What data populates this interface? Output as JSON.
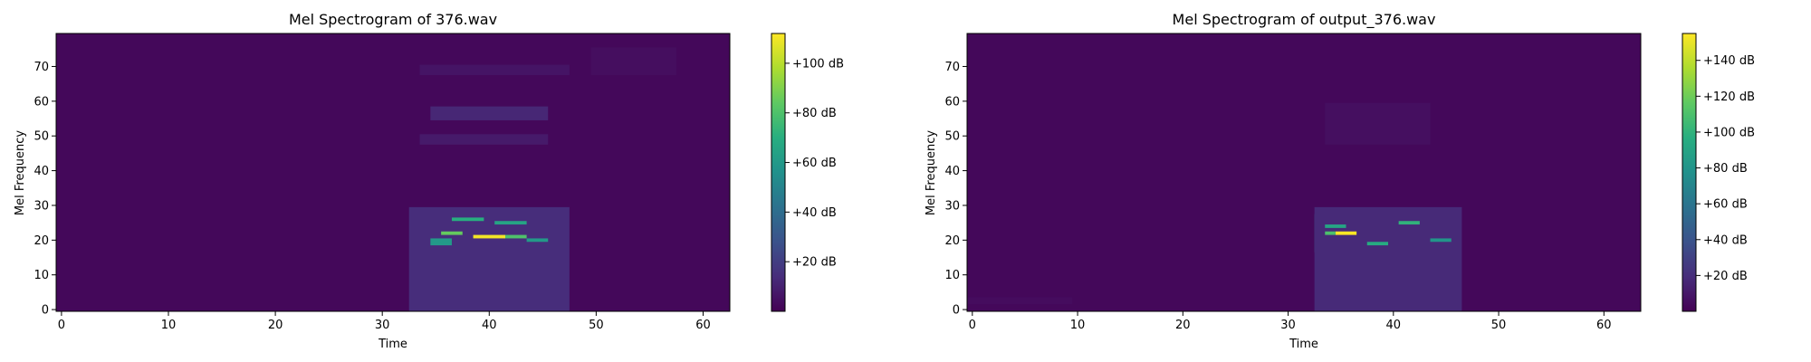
{
  "chart_data": [
    {
      "type": "heatmap",
      "title": "Mel Spectrogram of 376.wav",
      "xlabel": "Time",
      "ylabel": "Mel Frequency",
      "xlim": [
        -0.5,
        62.5
      ],
      "ylim": [
        -0.5,
        79.5
      ],
      "xticks": [
        0,
        10,
        20,
        30,
        40,
        50,
        60
      ],
      "yticks": [
        0,
        10,
        20,
        30,
        40,
        50,
        60,
        70
      ],
      "colormap": "viridis",
      "colorbar": {
        "max_db": 112,
        "ticks": [
          20,
          40,
          60,
          80,
          100
        ],
        "tick_format": "+{v} dB"
      },
      "hotspots": [
        {
          "t0": 34,
          "t1": 46,
          "m0": 18,
          "m1": 28,
          "db": 45
        },
        {
          "t0": 33,
          "t1": 48,
          "m0": 0,
          "m1": 30,
          "db": 14
        },
        {
          "t0": 35,
          "t1": 46,
          "m0": 55,
          "m1": 59,
          "db": 12
        },
        {
          "t0": 34,
          "t1": 46,
          "m0": 48,
          "m1": 51,
          "db": 8
        },
        {
          "t0": 34,
          "t1": 48,
          "m0": 68,
          "m1": 71,
          "db": 6
        },
        {
          "t0": 50,
          "t1": 58,
          "m0": 68,
          "m1": 76,
          "db": 4
        },
        {
          "t0": 39,
          "t1": 42,
          "m0": 21,
          "m1": 22,
          "db": 110
        },
        {
          "t0": 42,
          "t1": 44,
          "m0": 21,
          "m1": 22,
          "db": 80
        },
        {
          "t0": 36,
          "t1": 38,
          "m0": 22,
          "m1": 23,
          "db": 85
        },
        {
          "t0": 37,
          "t1": 40,
          "m0": 26,
          "m1": 27,
          "db": 70
        },
        {
          "t0": 41,
          "t1": 44,
          "m0": 25,
          "m1": 26,
          "db": 65
        },
        {
          "t0": 44,
          "t1": 46,
          "m0": 20,
          "m1": 21,
          "db": 60
        },
        {
          "t0": 35,
          "t1": 37,
          "m0": 19,
          "m1": 21,
          "db": 60
        }
      ]
    },
    {
      "type": "heatmap",
      "title": "Mel Spectrogram of output_376.wav",
      "xlabel": "Time",
      "ylabel": "Mel Frequency",
      "xlim": [
        -0.5,
        63.5
      ],
      "ylim": [
        -0.5,
        79.5
      ],
      "xticks": [
        0,
        10,
        20,
        30,
        40,
        50,
        60
      ],
      "yticks": [
        0,
        10,
        20,
        30,
        40,
        50,
        60,
        70
      ],
      "colormap": "viridis",
      "colorbar": {
        "max_db": 155,
        "ticks": [
          20,
          40,
          60,
          80,
          100,
          120,
          140
        ],
        "tick_format": "+{v} dB"
      },
      "hotspots": [
        {
          "t0": 33,
          "t1": 46,
          "m0": 17,
          "m1": 28,
          "db": 55
        },
        {
          "t0": 33,
          "t1": 47,
          "m0": 0,
          "m1": 30,
          "db": 18
        },
        {
          "t0": 34,
          "t1": 44,
          "m0": 48,
          "m1": 60,
          "db": 6
        },
        {
          "t0": 0,
          "t1": 10,
          "m0": 2,
          "m1": 4,
          "db": 5
        },
        {
          "t0": 35,
          "t1": 37,
          "m0": 22,
          "m1": 23,
          "db": 155
        },
        {
          "t0": 34,
          "t1": 35,
          "m0": 22,
          "m1": 23,
          "db": 110
        },
        {
          "t0": 34,
          "t1": 36,
          "m0": 24,
          "m1": 25,
          "db": 90
        },
        {
          "t0": 38,
          "t1": 40,
          "m0": 19,
          "m1": 20,
          "db": 95
        },
        {
          "t0": 41,
          "t1": 43,
          "m0": 25,
          "m1": 26,
          "db": 100
        },
        {
          "t0": 44,
          "t1": 46,
          "m0": 20,
          "m1": 21,
          "db": 80
        }
      ]
    }
  ]
}
